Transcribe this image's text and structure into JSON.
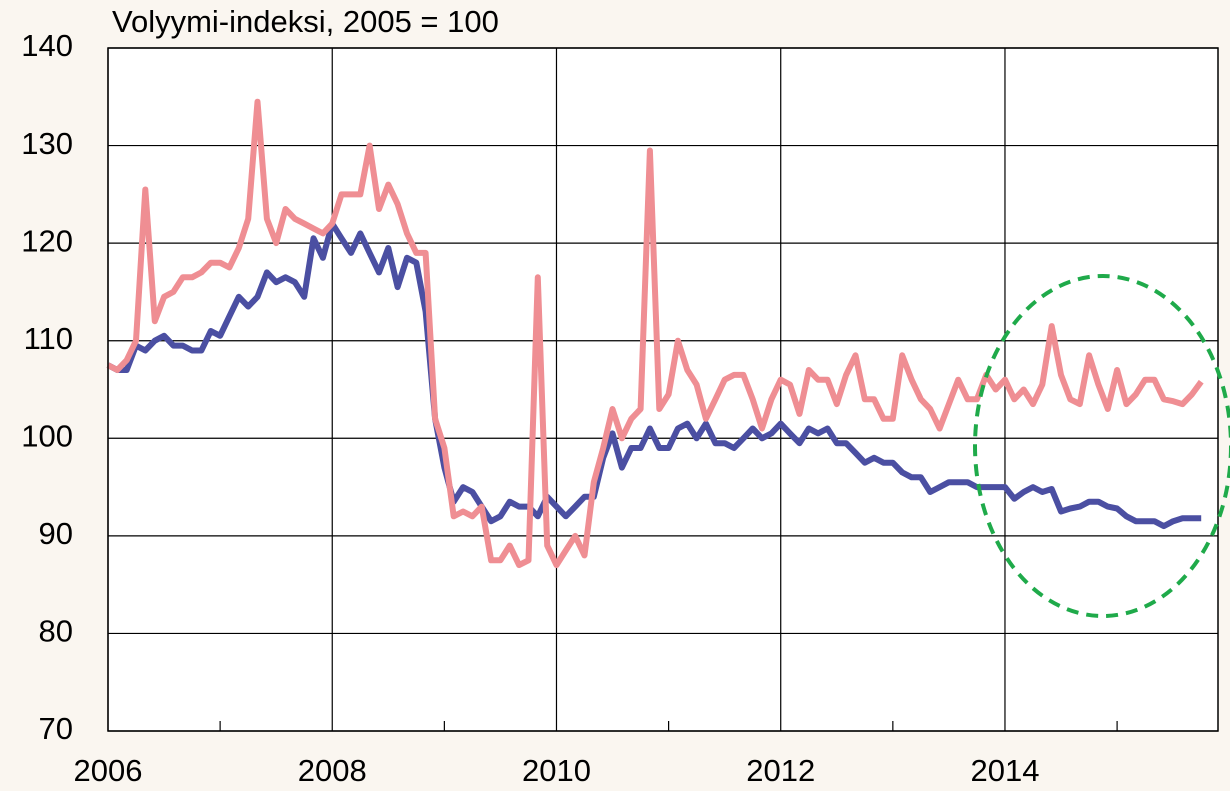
{
  "chart_data": {
    "type": "line",
    "title": "Volyymi-indeksi, 2005 = 100",
    "x": [
      2006,
      2006.083,
      2006.167,
      2006.25,
      2006.333,
      2006.417,
      2006.5,
      2006.583,
      2006.667,
      2006.75,
      2006.833,
      2006.917,
      2007,
      2007.083,
      2007.167,
      2007.25,
      2007.333,
      2007.417,
      2007.5,
      2007.583,
      2007.667,
      2007.75,
      2007.833,
      2007.917,
      2008,
      2008.083,
      2008.167,
      2008.25,
      2008.333,
      2008.417,
      2008.5,
      2008.583,
      2008.667,
      2008.75,
      2008.833,
      2008.917,
      2009,
      2009.083,
      2009.167,
      2009.25,
      2009.333,
      2009.417,
      2009.5,
      2009.583,
      2009.667,
      2009.75,
      2009.833,
      2009.917,
      2010,
      2010.083,
      2010.167,
      2010.25,
      2010.333,
      2010.417,
      2010.5,
      2010.583,
      2010.667,
      2010.75,
      2010.833,
      2010.917,
      2011,
      2011.083,
      2011.167,
      2011.25,
      2011.333,
      2011.417,
      2011.5,
      2011.583,
      2011.667,
      2011.75,
      2011.833,
      2011.917,
      2012,
      2012.083,
      2012.167,
      2012.25,
      2012.333,
      2012.417,
      2012.5,
      2012.583,
      2012.667,
      2012.75,
      2012.833,
      2012.917,
      2013,
      2013.083,
      2013.167,
      2013.25,
      2013.333,
      2013.417,
      2013.5,
      2013.583,
      2013.667,
      2013.75,
      2013.833,
      2013.917,
      2014,
      2014.083,
      2014.167,
      2014.25,
      2014.333,
      2014.417,
      2014.5,
      2014.583,
      2014.667,
      2014.75,
      2014.833,
      2014.917,
      2015,
      2015.083,
      2015.167,
      2015.25,
      2015.333,
      2015.417,
      2015.5,
      2015.583,
      2015.667,
      2015.75
    ],
    "series": [
      {
        "color": "#4b4fa2",
        "values": [
          107.5,
          107,
          107,
          109.5,
          109,
          110,
          110.5,
          109.5,
          109.5,
          109,
          109,
          111,
          110.5,
          112.5,
          114.5,
          113.5,
          114.5,
          117,
          116,
          116.5,
          116,
          114.5,
          120.5,
          118.5,
          122,
          120.5,
          119,
          121,
          119,
          117,
          119.5,
          115.5,
          118.5,
          118,
          113,
          102,
          97,
          93.5,
          95,
          94.5,
          93,
          91.5,
          92,
          93.5,
          93,
          93,
          92,
          94,
          93,
          92,
          93,
          94,
          94,
          98,
          100.5,
          97,
          99,
          99,
          101,
          99,
          99,
          101,
          101.5,
          100,
          101.5,
          99.5,
          99.5,
          99,
          100,
          101,
          100,
          100.5,
          101.5,
          100.5,
          99.5,
          101,
          100.5,
          101,
          99.5,
          99.5,
          98.5,
          97.5,
          98,
          97.5,
          97.5,
          96.5,
          96,
          96,
          94.5,
          95,
          95.5,
          95.5,
          95.5,
          95,
          95,
          95,
          95,
          93.8,
          94.5,
          95,
          94.5,
          94.8,
          92.5,
          92.8,
          93,
          93.5,
          93.5,
          93,
          92.8,
          92,
          91.5,
          91.5,
          91.5,
          91,
          91.5,
          91.8,
          91.8,
          91.8
        ]
      },
      {
        "color": "#ef8e93",
        "values": [
          107.5,
          107,
          108,
          110,
          125.5,
          112,
          114.5,
          115,
          116.5,
          116.5,
          117,
          118,
          118,
          117.5,
          119.5,
          122.5,
          134.5,
          122.5,
          120,
          123.5,
          122.5,
          122,
          121.5,
          121,
          122,
          125,
          125,
          125,
          130,
          123.5,
          126,
          124,
          121,
          119,
          119,
          102,
          99,
          92,
          92.5,
          92,
          93,
          87.5,
          87.5,
          89,
          87,
          87.5,
          116.5,
          89,
          87,
          88.5,
          90,
          88,
          95.5,
          99,
          103,
          100,
          102,
          103,
          129.5,
          103,
          104.5,
          110,
          107,
          105.5,
          102,
          104,
          106,
          106.5,
          106.5,
          104,
          101,
          104,
          106,
          105.5,
          102.5,
          107,
          106,
          106,
          103.5,
          106.5,
          108.5,
          104,
          104,
          102,
          102,
          108.5,
          106,
          104,
          103,
          101,
          103.5,
          106,
          104,
          104,
          106.5,
          105,
          106,
          104,
          105,
          103.5,
          105.5,
          111.5,
          106.5,
          104,
          103.5,
          108.5,
          105.5,
          103,
          107,
          103.5,
          104.5,
          106,
          106,
          104,
          103.8,
          103.5,
          104.5,
          105.8
        ]
      }
    ],
    "xlim": [
      2006,
      2015.9
    ],
    "xticks": [
      2006,
      2008,
      2010,
      2012,
      2014
    ],
    "xticks_minor": [
      2007,
      2009,
      2011,
      2013,
      2015
    ],
    "ylim": [
      70,
      140
    ],
    "yticks": [
      70,
      80,
      90,
      100,
      110,
      120,
      130,
      140
    ],
    "grid": true
  }
}
